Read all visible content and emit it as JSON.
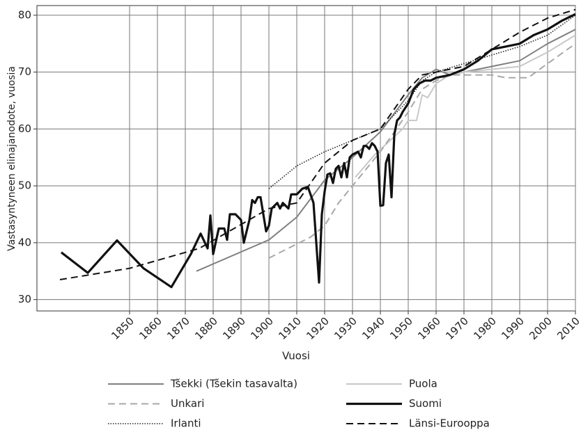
{
  "chart_data": {
    "type": "line",
    "xlabel": "Vuosi",
    "ylabel": "Vastasyntyneen elinajanodote, vuosia",
    "xlim": [
      1816.75,
      2010
    ],
    "ylim": [
      28,
      81.7
    ],
    "xticks": [
      1850,
      1860,
      1870,
      1880,
      1890,
      1900,
      1910,
      1920,
      1930,
      1940,
      1950,
      1960,
      1970,
      1980,
      1990,
      2000,
      2010
    ],
    "yticks": [
      30,
      40,
      50,
      60,
      70,
      80
    ],
    "grid": true,
    "legend": "bottom",
    "series": [
      {
        "name": "Tšekki (Tšekin tasavalta)",
        "color": "#808080",
        "style": "solid",
        "line_width": 2,
        "x": [
          1874,
          1900,
          1910,
          1920,
          1930,
          1940,
          1950,
          1955,
          1960,
          1965,
          1970,
          1980,
          1990,
          2000,
          2010
        ],
        "values": [
          35,
          40.5,
          44.5,
          51,
          55,
          59.5,
          66,
          69,
          70.5,
          69.5,
          70,
          71,
          72,
          75,
          77.5
        ]
      },
      {
        "name": "Puola",
        "color": "#c8c8c8",
        "style": "solid",
        "line_width": 2,
        "x": [
          1931,
          1938,
          1948,
          1950,
          1953,
          1955,
          1957,
          1960,
          1965,
          1970,
          1980,
          1990,
          2000,
          2010
        ],
        "values": [
          51.5,
          55.5,
          60,
          61.5,
          61.5,
          66,
          65.5,
          68,
          69.5,
          70,
          70.5,
          71,
          73.5,
          76.5
        ]
      },
      {
        "name": "Unkari",
        "color": "#a8a8a8",
        "style": "dashed",
        "line_width": 2,
        "x": [
          1900,
          1915,
          1920,
          1925,
          1930,
          1940,
          1950,
          1955,
          1960,
          1965,
          1970,
          1980,
          1985,
          1993,
          2000,
          2010
        ],
        "values": [
          37.3,
          41,
          43,
          47,
          50,
          56,
          63,
          67,
          68.5,
          69.5,
          69.5,
          69.5,
          69,
          69,
          71.5,
          75
        ]
      },
      {
        "name": "Irlanti",
        "color": "#222222",
        "style": "dotted",
        "line_width": 1.6,
        "x": [
          1900,
          1910,
          1920,
          1930,
          1940,
          1950,
          1955,
          1960,
          1970,
          1980,
          1990,
          2000,
          2010
        ],
        "values": [
          49.5,
          53.5,
          56,
          58,
          60,
          65,
          68.5,
          70,
          71.5,
          73,
          74.5,
          76.5,
          80
        ]
      },
      {
        "name": "Länsi-Eurooppa",
        "color": "#111111",
        "style": "dashed",
        "line_width": 2,
        "x": [
          1825,
          1850,
          1875,
          1900,
          1910,
          1920,
          1930,
          1940,
          1950,
          1955,
          1960,
          1970,
          1980,
          1990,
          2000,
          2010
        ],
        "values": [
          33.5,
          35.5,
          39,
          46,
          47,
          54,
          58,
          60,
          67,
          69.5,
          70,
          71,
          74,
          77,
          79.5,
          81
        ]
      },
      {
        "name": "Suomi",
        "color": "#111111",
        "style": "solid",
        "line_width": 3.2,
        "x": [
          1825.5,
          1835,
          1845.5,
          1855,
          1865,
          1872,
          1875.5,
          1878,
          1879,
          1880,
          1882,
          1884,
          1885,
          1886,
          1888,
          1890,
          1891,
          1893,
          1894,
          1895,
          1896,
          1897,
          1898,
          1899,
          1900,
          1901,
          1903,
          1904,
          1905,
          1906,
          1907,
          1908,
          1910,
          1912,
          1914,
          1916,
          1918,
          1919,
          1920,
          1921,
          1922,
          1923,
          1924,
          1925,
          1926,
          1927,
          1928,
          1929,
          1930,
          1932,
          1933,
          1934,
          1935,
          1936,
          1937,
          1938,
          1939,
          1940,
          1941,
          1942,
          1943,
          1944,
          1945,
          1946,
          1947,
          1948,
          1950,
          1952,
          1954,
          1956,
          1958,
          1960,
          1965,
          1970,
          1975,
          1980,
          1985,
          1990,
          1995,
          2000,
          2005,
          2010
        ],
        "values": [
          38.3,
          34.7,
          40.4,
          35.5,
          32.2,
          38,
          41.6,
          39,
          44.8,
          38,
          42.5,
          42.5,
          40.5,
          45,
          45,
          44,
          40,
          44,
          47.5,
          47,
          48,
          48,
          45,
          42,
          43,
          46,
          47,
          46,
          47,
          46.5,
          46,
          48.5,
          48.5,
          49.5,
          49.8,
          47,
          33,
          45,
          49,
          52,
          52.2,
          50.5,
          53,
          53.5,
          51.5,
          54,
          51.5,
          55,
          55.5,
          56,
          55,
          57,
          57,
          56.5,
          57.5,
          57,
          56,
          46.5,
          46.6,
          54,
          55.5,
          48,
          59,
          61.5,
          62,
          63,
          64.5,
          67,
          68,
          68.5,
          68.5,
          69,
          69.5,
          70.5,
          72,
          74,
          74.5,
          75,
          76.5,
          77.5,
          79,
          80.2
        ]
      }
    ],
    "legend_order": null
  }
}
